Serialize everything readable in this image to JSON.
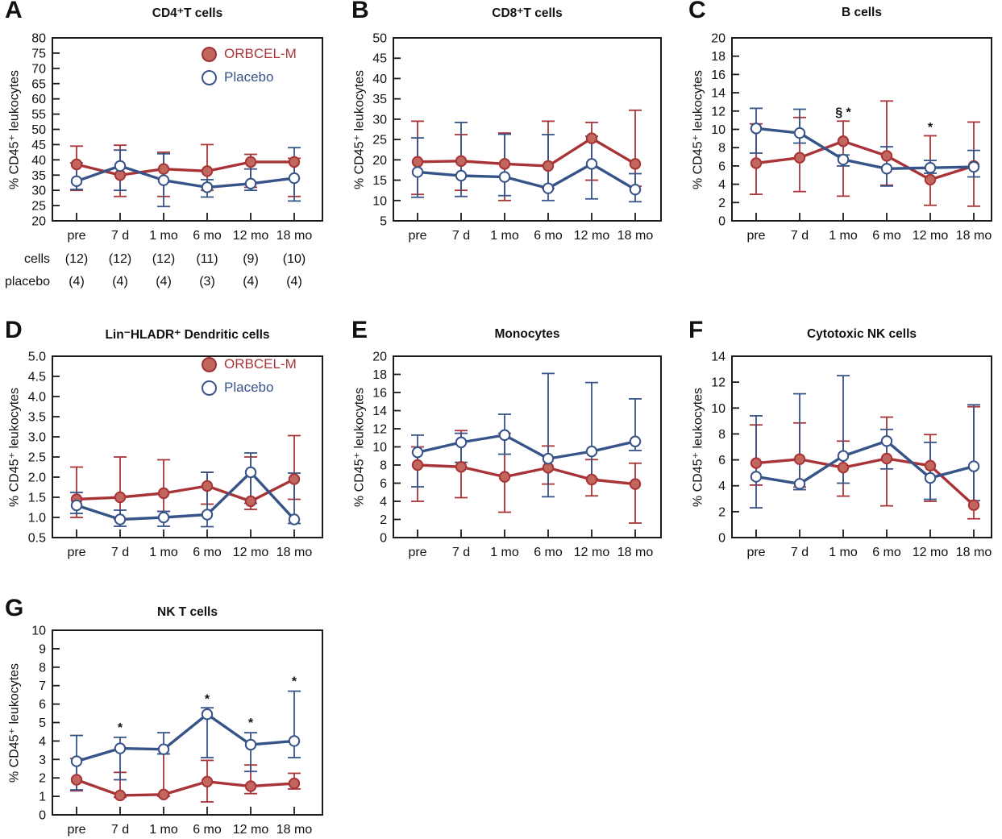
{
  "figure": {
    "legend": {
      "orbcel": "ORBCEL-M",
      "placebo": "Placebo"
    },
    "colors": {
      "orbcel_line": "#a83438",
      "orbcel_fill": "#c2675e",
      "placebo_line": "#375489",
      "placebo_fill": "#ffffff",
      "axis": "#1a1a1a",
      "text": "#111111"
    },
    "categories": [
      "pre",
      "7 d",
      "1 mo",
      "6 mo",
      "12 mo",
      "18 mo"
    ],
    "ylabel": "% CD45⁺ leukocytes"
  },
  "chart_data": [
    {
      "panel": "A",
      "type": "line",
      "title": "CD4⁺T cells",
      "ylabel": "% CD45⁺ leukocytes",
      "ylim": [
        20,
        80
      ],
      "ystep": 5,
      "ydecimals": 0,
      "categories": [
        "pre",
        "7 d",
        "1 mo",
        "6 mo",
        "12 mo",
        "18 mo"
      ],
      "show_legend": true,
      "series": [
        {
          "name": "ORBCEL-M",
          "key": "orbcel",
          "mean": [
            38.5,
            35,
            37,
            36.3,
            39.3,
            39.3
          ],
          "lo": [
            30,
            28,
            28,
            30,
            31,
            28
          ],
          "hi": [
            44.5,
            44.8,
            42.5,
            45,
            41.8,
            40.5
          ]
        },
        {
          "name": "Placebo",
          "key": "placebo",
          "mean": [
            33,
            38,
            33.3,
            31,
            32.2,
            34
          ],
          "lo": [
            30.3,
            30,
            24.7,
            27.8,
            30,
            26.5
          ],
          "hi": [
            39,
            43.2,
            42,
            33.5,
            37,
            44
          ]
        }
      ],
      "annotations": [],
      "sample_sizes": {
        "rows": [
          {
            "label": "cells",
            "values": [
              "(12)",
              "(12)",
              "(12)",
              "(11)",
              "(9)",
              "(10)"
            ]
          },
          {
            "label": "placebo",
            "values": [
              "(4)",
              "(4)",
              "(4)",
              "(3)",
              "(4)",
              "(4)"
            ]
          }
        ]
      }
    },
    {
      "panel": "B",
      "type": "line",
      "title": "CD8⁺T cells",
      "ylabel": "% CD45⁺ leukocytes",
      "ylim": [
        5,
        50
      ],
      "ystep": 5,
      "ydecimals": 0,
      "categories": [
        "pre",
        "7 d",
        "1 mo",
        "6 mo",
        "12 mo",
        "18 mo"
      ],
      "show_legend": false,
      "series": [
        {
          "name": "ORBCEL-M",
          "key": "orbcel",
          "mean": [
            19.5,
            19.7,
            19,
            18.5,
            25.3,
            19
          ],
          "lo": [
            11.5,
            12.5,
            10,
            13,
            15,
            13.5
          ],
          "hi": [
            29.5,
            26.2,
            26.6,
            29.5,
            29.2,
            32.2
          ]
        },
        {
          "name": "Placebo",
          "key": "placebo",
          "mean": [
            17,
            16.1,
            15.8,
            13,
            19,
            12.7
          ],
          "lo": [
            10.8,
            11,
            11.2,
            10,
            10.4,
            9.7
          ],
          "hi": [
            25.4,
            29.2,
            26.3,
            26.2,
            25.8,
            16.6
          ]
        }
      ],
      "annotations": []
    },
    {
      "panel": "C",
      "type": "line",
      "title": "B cells",
      "ylabel": "% CD45⁺ leukocytes",
      "ylim": [
        0,
        20
      ],
      "ystep": 2,
      "ydecimals": 0,
      "categories": [
        "pre",
        "7 d",
        "1 mo",
        "6 mo",
        "12 mo",
        "18 mo"
      ],
      "show_legend": false,
      "series": [
        {
          "name": "ORBCEL-M",
          "key": "orbcel",
          "mean": [
            6.3,
            6.9,
            8.7,
            7.1,
            4.5,
            6.0
          ],
          "lo": [
            2.9,
            3.2,
            2.7,
            3.9,
            1.7,
            1.6
          ],
          "hi": [
            10.6,
            11.3,
            10.9,
            13.1,
            9.3,
            10.8
          ]
        },
        {
          "name": "Placebo",
          "key": "placebo",
          "mean": [
            10.1,
            9.6,
            6.7,
            5.7,
            5.8,
            5.9
          ],
          "lo": [
            7.4,
            8.5,
            6.0,
            3.8,
            5.2,
            4.8
          ],
          "hi": [
            12.3,
            12.2,
            7.2,
            8.1,
            6.6,
            7.7
          ]
        }
      ],
      "annotations": [
        {
          "index": 2,
          "y": 11.4,
          "text": "§ *"
        },
        {
          "index": 4,
          "y": 9.8,
          "text": "*"
        }
      ]
    },
    {
      "panel": "D",
      "type": "line",
      "title": "Lin⁻HLADR⁺ Dendritic cells",
      "ylabel": "% CD45⁺ leukocytes",
      "ylim": [
        0.5,
        5.0
      ],
      "ystep": 0.5,
      "ydecimals": 1,
      "categories": [
        "pre",
        "7 d",
        "1 mo",
        "6 mo",
        "12 mo",
        "18 mo"
      ],
      "show_legend": true,
      "series": [
        {
          "name": "ORBCEL-M",
          "key": "orbcel",
          "mean": [
            1.45,
            1.5,
            1.6,
            1.78,
            1.4,
            1.95
          ],
          "lo": [
            1.0,
            0.95,
            1.15,
            1.33,
            1.2,
            1.45
          ],
          "hi": [
            2.25,
            2.5,
            2.43,
            2.12,
            2.5,
            3.03
          ]
        },
        {
          "name": "Placebo",
          "key": "placebo",
          "mean": [
            1.3,
            0.95,
            1.0,
            1.07,
            2.12,
            0.95
          ],
          "lo": [
            1.1,
            0.78,
            0.78,
            0.77,
            1.35,
            0.85
          ],
          "hi": [
            1.62,
            1.18,
            1.15,
            2.12,
            2.6,
            2.1
          ]
        }
      ],
      "annotations": []
    },
    {
      "panel": "E",
      "type": "line",
      "title": "Monocytes",
      "ylabel": "% CD45⁺ leukocytes",
      "ylim": [
        0,
        20
      ],
      "ystep": 2,
      "ydecimals": 0,
      "categories": [
        "pre",
        "7 d",
        "1 mo",
        "6 mo",
        "12 mo",
        "18 mo"
      ],
      "show_legend": false,
      "series": [
        {
          "name": "ORBCEL-M",
          "key": "orbcel",
          "mean": [
            8.0,
            7.8,
            6.7,
            7.7,
            6.4,
            5.9
          ],
          "lo": [
            4.0,
            4.4,
            2.8,
            5.9,
            4.6,
            1.6
          ],
          "hi": [
            10.0,
            11.8,
            11.5,
            10.1,
            8.6,
            8.2
          ]
        },
        {
          "name": "Placebo",
          "key": "placebo",
          "mean": [
            9.4,
            10.5,
            11.3,
            8.7,
            9.5,
            10.6
          ],
          "lo": [
            5.6,
            8.3,
            9.2,
            4.5,
            6.5,
            9.6
          ],
          "hi": [
            11.3,
            11.5,
            13.6,
            18.1,
            17.1,
            15.3
          ]
        }
      ],
      "annotations": []
    },
    {
      "panel": "F",
      "type": "line",
      "title": "Cytotoxic NK cells",
      "ylabel": "% CD45⁺ leukocytes",
      "ylim": [
        0,
        14
      ],
      "ystep": 2,
      "ydecimals": 0,
      "categories": [
        "pre",
        "7 d",
        "1 mo",
        "6 mo",
        "12 mo",
        "18 mo"
      ],
      "show_legend": false,
      "series": [
        {
          "name": "ORBCEL-M",
          "key": "orbcel",
          "mean": [
            5.75,
            6.05,
            5.4,
            6.1,
            5.55,
            2.5
          ],
          "lo": [
            4.05,
            3.9,
            3.2,
            2.45,
            2.8,
            1.45
          ],
          "hi": [
            8.7,
            8.85,
            7.45,
            9.3,
            7.95,
            10.1
          ]
        },
        {
          "name": "Placebo",
          "key": "placebo",
          "mean": [
            4.7,
            4.15,
            6.3,
            7.45,
            4.6,
            5.5
          ],
          "lo": [
            2.3,
            3.7,
            4.2,
            5.3,
            2.95,
            2.85
          ],
          "hi": [
            9.4,
            11.1,
            12.5,
            8.35,
            7.35,
            10.25
          ]
        }
      ],
      "annotations": []
    },
    {
      "panel": "G",
      "type": "line",
      "title": "NK T cells",
      "ylabel": "% CD45⁺ leukocytes",
      "ylim": [
        0,
        10
      ],
      "ystep": 1,
      "ydecimals": 0,
      "categories": [
        "pre",
        "7 d",
        "1 mo",
        "6 mo",
        "12 mo",
        "18 mo"
      ],
      "show_legend": false,
      "series": [
        {
          "name": "ORBCEL-M",
          "key": "orbcel",
          "mean": [
            1.9,
            1.05,
            1.1,
            1.8,
            1.55,
            1.7
          ],
          "lo": [
            1.3,
            0.95,
            1.0,
            0.7,
            1.15,
            1.4
          ],
          "hi": [
            3.05,
            2.3,
            3.3,
            2.95,
            2.7,
            2.25
          ]
        },
        {
          "name": "Placebo",
          "key": "placebo",
          "mean": [
            2.9,
            3.6,
            3.55,
            5.45,
            3.8,
            4.0
          ],
          "lo": [
            1.35,
            1.9,
            3.3,
            3.1,
            2.35,
            3.1
          ],
          "hi": [
            4.3,
            4.2,
            4.45,
            5.8,
            4.45,
            6.7
          ]
        }
      ],
      "annotations": [
        {
          "index": 1,
          "y": 4.5,
          "text": "*"
        },
        {
          "index": 3,
          "y": 6.05,
          "text": "*"
        },
        {
          "index": 4,
          "y": 4.75,
          "text": "*"
        },
        {
          "index": 5,
          "y": 7.0,
          "text": "*"
        }
      ]
    }
  ]
}
